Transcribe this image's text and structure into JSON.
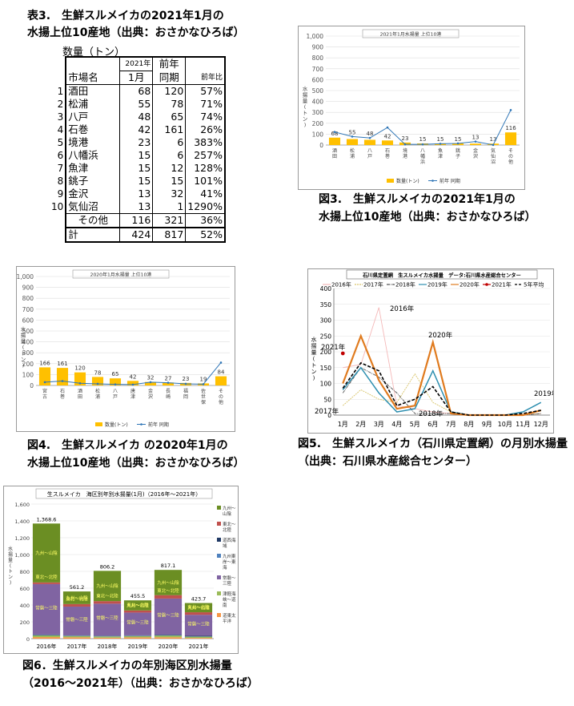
{
  "table3": {
    "caption1": "表3.　生鮮スルメイカの2021年1月の",
    "caption2": "水揚上位10産地（出典：おさかなひろば）",
    "unit": "数量（トン）",
    "h_year": "2021年",
    "h_prev": "前年",
    "h_market": "市場名",
    "h_jan": "1月",
    "h_same": "同期",
    "h_ratio": "前年比",
    "rows": [
      {
        "rank": "1",
        "name": "酒田",
        "v2021": "68",
        "prev": "120",
        "ratio": "57%"
      },
      {
        "rank": "2",
        "name": "松浦",
        "v2021": "55",
        "prev": "78",
        "ratio": "71%"
      },
      {
        "rank": "3",
        "name": "八戸",
        "v2021": "48",
        "prev": "65",
        "ratio": "74%"
      },
      {
        "rank": "4",
        "name": "石巻",
        "v2021": "42",
        "prev": "161",
        "ratio": "26%"
      },
      {
        "rank": "5",
        "name": "境港",
        "v2021": "23",
        "prev": "6",
        "ratio": "383%"
      },
      {
        "rank": "6",
        "name": "八幡浜",
        "v2021": "15",
        "prev": "6",
        "ratio": "257%"
      },
      {
        "rank": "7",
        "name": "魚津",
        "v2021": "15",
        "prev": "12",
        "ratio": "128%"
      },
      {
        "rank": "8",
        "name": "銚子",
        "v2021": "15",
        "prev": "15",
        "ratio": "101%"
      },
      {
        "rank": "9",
        "name": "金沢",
        "v2021": "13",
        "prev": "32",
        "ratio": "41%"
      },
      {
        "rank": "10",
        "name": "気仙沼",
        "v2021": "13",
        "prev": "1",
        "ratio": "1290%"
      }
    ],
    "other": {
      "name": "その他",
      "v2021": "116",
      "prev": "321",
      "ratio": "36%"
    },
    "total": {
      "name": "計",
      "v2021": "424",
      "prev": "817",
      "ratio": "52%"
    }
  },
  "fig3": {
    "caption1": "図3.　生鮮スルメイカの2021年1月の",
    "caption2": "水揚上位10産地（出典：おさかなひろば）"
  },
  "fig4": {
    "caption1": "図4.　生鮮スルメイカ の2020年1月の",
    "caption2": "水揚上位10産地（出典：おさかなひろば）"
  },
  "fig5": {
    "caption1": "図5.　生鮮スルメイカ（石川県定置網）の月別水揚量",
    "caption2": "（出典：石川県水産総合センター）"
  },
  "fig6": {
    "caption1": "図6．生鮮スルメイカの年別海区別水揚量",
    "caption2": "（2016～2021年）（出典：おさかなひろば）"
  },
  "chart_data": [
    {
      "id": "fig3",
      "type": "bar",
      "title": "2021年1月水揚量 上位10港",
      "ylabel": "水揚量(トン)",
      "ylim": [
        0,
        1000
      ],
      "yticks": [
        "0",
        "100",
        "200",
        "300",
        "400",
        "500",
        "600",
        "700",
        "800",
        "900",
        "1,000"
      ],
      "categories": [
        "酒田",
        "松浦",
        "八戸",
        "石巻",
        "境港",
        "八幡浜",
        "魚津",
        "銚子",
        "金沢",
        "気仙沼",
        "その他"
      ],
      "series": [
        {
          "name": "数量(トン)",
          "kind": "bar",
          "color": "#FFC000",
          "values": [
            68,
            55,
            48,
            42,
            23,
            15,
            15,
            15,
            13,
            13,
            116
          ]
        },
        {
          "name": "前年 同期",
          "kind": "line",
          "color": "#2E75B6",
          "values": [
            120,
            78,
            65,
            161,
            6,
            6,
            12,
            15,
            32,
            1,
            321
          ]
        }
      ],
      "data_labels": [
        "68",
        "55",
        "48",
        "42",
        "23",
        "15",
        "15",
        "15",
        "13",
        "13",
        "116"
      ]
    },
    {
      "id": "fig4",
      "type": "bar",
      "title": "2020年1月水揚量 上位10港",
      "ylabel": "水揚量(トン)",
      "ylim": [
        0,
        1000
      ],
      "yticks": [
        "0",
        "100",
        "200",
        "300",
        "400",
        "500",
        "600",
        "700",
        "800",
        "900",
        "1,000"
      ],
      "categories": [
        "宮古",
        "石巻",
        "酒田",
        "松浦",
        "八戸",
        "唐津",
        "金沢",
        "長崎",
        "福岡",
        "佐世保",
        "その他"
      ],
      "series": [
        {
          "name": "数量(トン)",
          "kind": "bar",
          "color": "#FFC000",
          "values": [
            166,
            161,
            120,
            78,
            65,
            42,
            32,
            27,
            23,
            19,
            84
          ]
        },
        {
          "name": "前年 同期",
          "kind": "line",
          "color": "#2E75B6",
          "values": [
            30,
            40,
            20,
            15,
            10,
            8,
            30,
            25,
            15,
            12,
            210
          ]
        }
      ],
      "data_labels": [
        "166",
        "161",
        "120",
        "78",
        "65",
        "42",
        "32",
        "27",
        "23",
        "19",
        "84"
      ]
    },
    {
      "id": "fig5",
      "type": "line",
      "title": "石川県定置網　生スルメイカ水揚量　データ:石川県水産総合センター",
      "ylabel": "水揚量(トン)",
      "ylim": [
        0,
        400
      ],
      "yticks": [
        "0",
        "50",
        "100",
        "150",
        "200",
        "250",
        "300",
        "350",
        "400"
      ],
      "categories": [
        "1月",
        "2月",
        "3月",
        "4月",
        "5月",
        "6月",
        "7月",
        "8月",
        "9月",
        "10月",
        "11月",
        "12月"
      ],
      "series": [
        {
          "name": "2016年",
          "color": "#F4B8B8",
          "values": [
            150,
            160,
            340,
            30,
            20,
            10,
            5,
            0,
            0,
            0,
            0,
            5
          ]
        },
        {
          "name": "2017年",
          "color": "#D9C56A",
          "values": [
            30,
            80,
            50,
            40,
            130,
            40,
            10,
            0,
            0,
            0,
            0,
            5
          ]
        },
        {
          "name": "2018年",
          "color": "#555555",
          "values": [
            70,
            150,
            120,
            70,
            5,
            5,
            5,
            0,
            0,
            0,
            0,
            5
          ]
        },
        {
          "name": "2019年",
          "color": "#2E8FB0",
          "values": [
            80,
            150,
            70,
            10,
            20,
            140,
            10,
            0,
            0,
            0,
            10,
            40
          ]
        },
        {
          "name": "2020年",
          "color": "#E07B1F",
          "values": [
            100,
            250,
            110,
            20,
            30,
            230,
            5,
            0,
            0,
            0,
            0,
            15
          ]
        },
        {
          "name": "2021年",
          "color": "#C00000",
          "values": [
            195,
            null,
            null,
            null,
            null,
            null,
            null,
            null,
            null,
            null,
            null,
            null
          ]
        },
        {
          "name": "5年平均",
          "color": "#000000",
          "values": [
            85,
            165,
            140,
            30,
            50,
            90,
            10,
            0,
            0,
            0,
            5,
            15
          ]
        }
      ],
      "annotations": [
        "2016年",
        "2020年",
        "2021年",
        "2019年",
        "2018年",
        "2017年"
      ]
    },
    {
      "id": "fig6",
      "type": "bar",
      "title": "生スルメイカ　海区別年別水揚量(1月)（2016年～2021年）",
      "ylabel": "水揚量(トン)",
      "ylim": [
        0,
        1600
      ],
      "yticks": [
        "0",
        "200",
        "400",
        "600",
        "800",
        "1,000",
        "1,200",
        "1,400",
        "1,600"
      ],
      "categories": [
        "2016年",
        "2017年",
        "2018年",
        "2019年",
        "2020年",
        "2021年"
      ],
      "totals": [
        "1,368.6",
        "561.2",
        "806.2",
        "455.5",
        "817.1",
        "423.7"
      ],
      "series": [
        {
          "name": "九州～山陰",
          "color": "#6B8E23",
          "values": [
            700,
            150,
            360,
            120,
            300,
            110
          ]
        },
        {
          "name": "東北～北陸",
          "color": "#C0504D",
          "values": [
            20,
            30,
            30,
            25,
            40,
            30
          ]
        },
        {
          "name": "道西海域",
          "color": "#1F3864",
          "values": [
            5,
            5,
            5,
            5,
            5,
            5
          ]
        },
        {
          "name": "九州東岸～東海",
          "color": "#4F81BD",
          "values": [
            5,
            5,
            5,
            5,
            5,
            5
          ]
        },
        {
          "name": "常磐～三陸",
          "color": "#8064A2",
          "values": [
            600,
            340,
            380,
            270,
            430,
            250
          ]
        },
        {
          "name": "津軽海峡～道南",
          "color": "#9BBB59",
          "values": [
            20,
            15,
            15,
            15,
            20,
            15
          ]
        },
        {
          "name": "道東太平洋",
          "color": "#F79646",
          "values": [
            18.6,
            16.2,
            11.2,
            15.5,
            17.1,
            8.7
          ]
        }
      ],
      "segment_labels": [
        "九州～山陰",
        "東北～北陸",
        "常磐～三陸"
      ]
    }
  ]
}
